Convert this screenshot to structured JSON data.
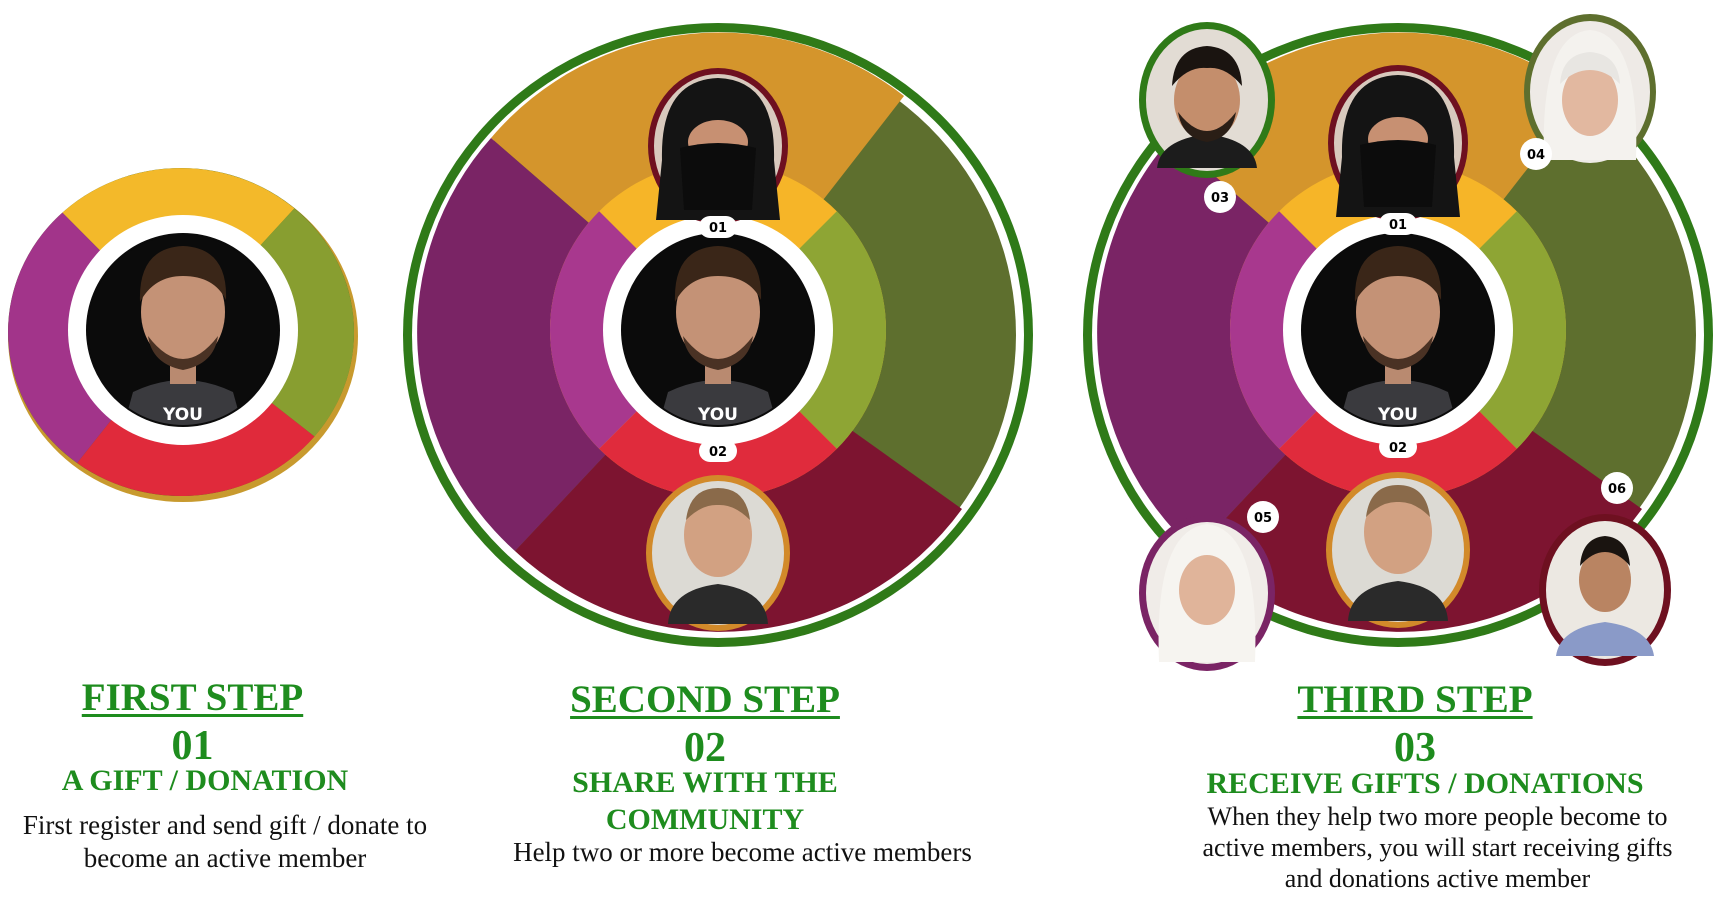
{
  "you_label": "YOU",
  "steps": [
    {
      "title": "FIRST STEP",
      "number": "01",
      "subtitle": "A GIFT / DONATION",
      "description_lines": [
        "First register and send gift / donate to",
        "become an active member"
      ]
    },
    {
      "title": "SECOND STEP",
      "number": "02",
      "subtitle_lines": [
        "SHARE WITH THE",
        "COMMUNITY"
      ],
      "description_lines": [
        "Help two or more become active members"
      ],
      "badges": [
        "01",
        "02"
      ]
    },
    {
      "title": "THIRD STEP",
      "number": "03",
      "subtitle": "RECEIVE GIFTS / DONATIONS",
      "description_lines": [
        "When they help two more people become to",
        "active members, you will start receiving gifts",
        "and donations active member"
      ],
      "badges": [
        "01",
        "02",
        "03",
        "04",
        "05",
        "06"
      ]
    }
  ],
  "colors": {
    "caption_green": "#1e8c1e",
    "orange": "#d4952c",
    "olive": "#5e6f2e",
    "purple": "#7a2465",
    "maroon": "#7d1430",
    "inner_yellow": "#f6b528",
    "inner_green": "#8ea534",
    "inner_red": "#e02b3c",
    "inner_magenta": "#a8388e",
    "ring_green": "#2f7a18"
  },
  "icons": [
    "person-avatar-icon"
  ]
}
